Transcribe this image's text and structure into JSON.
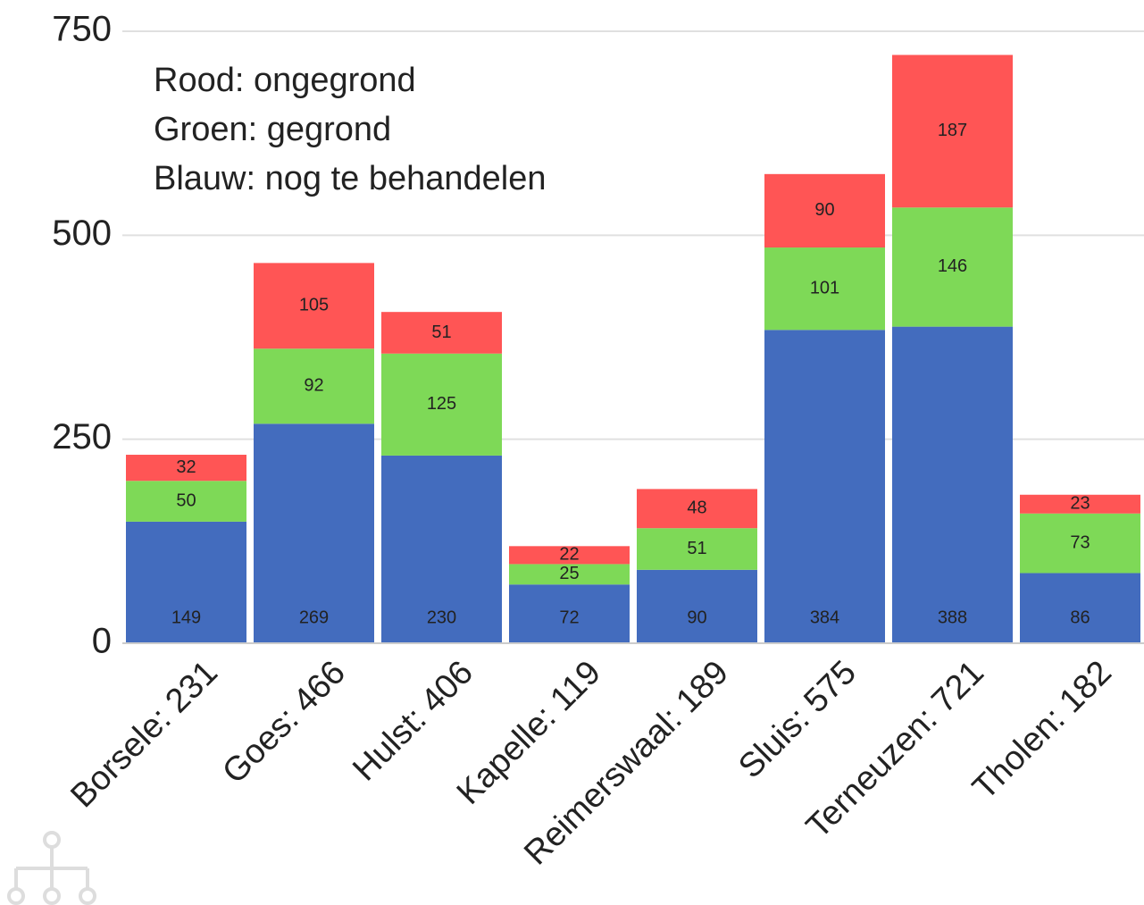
{
  "chart_data": {
    "type": "stacked_bar",
    "annotations": [
      "Rood: ongegrond",
      "Groen: gegrond",
      "Blauw: nog te behandelen"
    ],
    "categories": [
      "Borsele: 231",
      "Goes: 466",
      "Hulst: 406",
      "Kapelle: 119",
      "Reimerswaal: 189",
      "Sluis: 575",
      "Terneuzen: 721",
      "Tholen: 182"
    ],
    "series": [
      {
        "color": "#436cbe",
        "values": [
          149,
          269,
          230,
          72,
          90,
          384,
          388,
          86
        ]
      },
      {
        "color": "#7ed957",
        "values": [
          50,
          92,
          125,
          25,
          51,
          101,
          146,
          73
        ]
      },
      {
        "color": "#ff5555",
        "values": [
          32,
          105,
          51,
          22,
          48,
          90,
          187,
          23
        ]
      }
    ],
    "ylim": [
      0,
      750
    ],
    "yticks": [
      0,
      250,
      500,
      750
    ],
    "grid": true
  }
}
